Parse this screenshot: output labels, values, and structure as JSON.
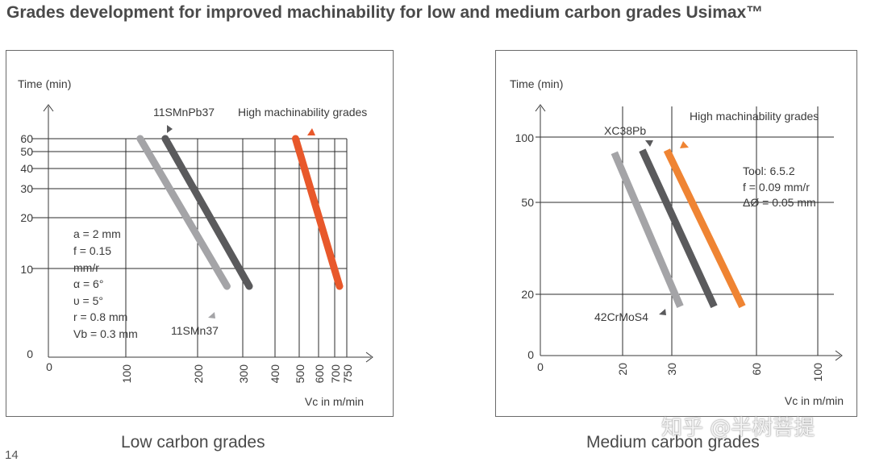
{
  "page": {
    "title": "Grades development for improved machinability for low and medium carbon grades Usimax™",
    "page_number": "14",
    "watermark": "知乎 @半树菩提"
  },
  "colors": {
    "light_grey": "#a4a4a7",
    "dark_grey": "#5a5a5c",
    "orange_low": "#e8582b",
    "orange_medium": "#ef8433"
  },
  "chart_data": [
    {
      "type": "line",
      "caption": "Low carbon grades",
      "ylabel": "Time (min)",
      "xlabel": "Vc in m/min",
      "x_ticks": [
        "0",
        "100",
        "200",
        "300",
        "400",
        "500",
        "600",
        "700",
        "750"
      ],
      "y_ticks": [
        "0",
        "10",
        "20",
        "30",
        "40",
        "50",
        "60"
      ],
      "series_labels": {
        "dark": "11SMnPb37",
        "orange": "High machinability grades",
        "light": "11SMn37"
      },
      "series": [
        {
          "name": "11SMn37",
          "color": "light_grey",
          "x": [
            120,
            265
          ],
          "y": [
            60,
            8
          ]
        },
        {
          "name": "11SMnPb37",
          "color": "dark_grey",
          "x": [
            155,
            320
          ],
          "y": [
            60,
            8
          ]
        },
        {
          "name": "High machinability grades",
          "color": "orange_low",
          "x": [
            485,
            720
          ],
          "y": [
            60,
            8
          ]
        }
      ],
      "params": [
        "a = 2 mm",
        "f = 0.15",
        "mm/r",
        "α = 6°",
        "υ = 5°",
        "r = 0.8 mm",
        "Vb = 0.3 mm"
      ]
    },
    {
      "type": "line",
      "caption": "Medium carbon grades",
      "ylabel": "Time (min)",
      "xlabel": "Vc in m/min",
      "x_ticks": [
        "0",
        "20",
        "30",
        "60",
        "100"
      ],
      "y_ticks": [
        "0",
        "20",
        "50",
        "100"
      ],
      "series_labels": {
        "dark": "XC38Pb",
        "orange": "High machinability grades",
        "light": "42CrMoS4"
      },
      "series": [
        {
          "name": "42CrMoS4",
          "color": "light_grey",
          "x": [
            18,
            33
          ],
          "y": [
            88,
            16
          ]
        },
        {
          "name": "XC38Pb",
          "color": "dark_grey",
          "x": [
            24,
            45
          ],
          "y": [
            90,
            16
          ]
        },
        {
          "name": "High machinability grades",
          "color": "orange_medium",
          "x": [
            29,
            55
          ],
          "y": [
            90,
            16
          ]
        }
      ],
      "params": [
        "Tool: 6.5.2",
        "f = 0.09 mm/r",
        "ΔØ = 0.05 mm"
      ]
    }
  ]
}
